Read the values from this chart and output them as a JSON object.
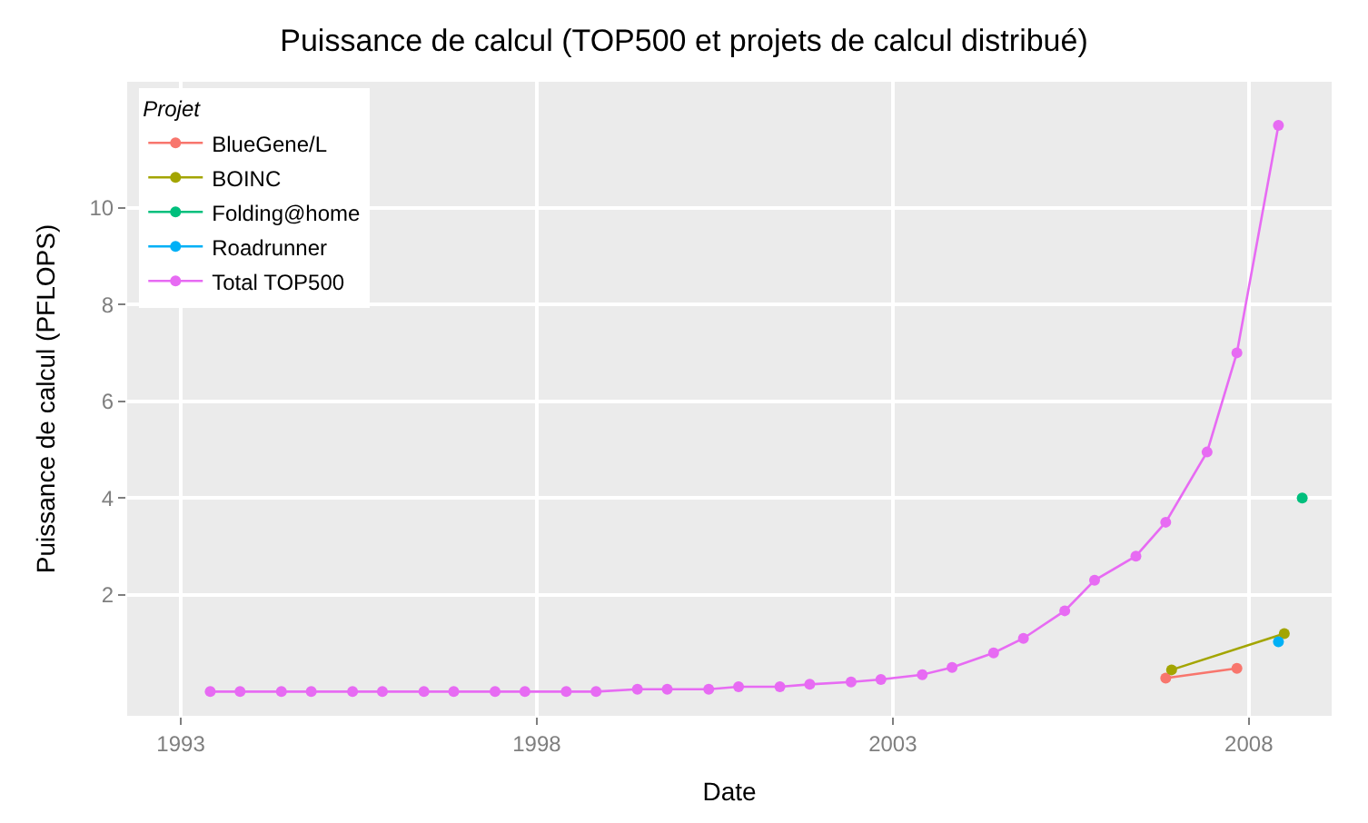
{
  "chart_data": {
    "type": "line",
    "title": "Puissance de calcul (TOP500 et projets de calcul distribué)",
    "xlabel": "Date",
    "ylabel": "Puissance de calcul (PFLOPS)",
    "legend_title": "Projet",
    "legend": "top left",
    "grid": true,
    "marker": "circle",
    "line_style": "solid",
    "xlim": [
      "1992-04",
      "2009-03"
    ],
    "xticks": [
      {
        "value": "1993-01",
        "label": "1993"
      },
      {
        "value": "1998-01",
        "label": "1998"
      },
      {
        "value": "2003-01",
        "label": "2003"
      },
      {
        "value": "2008-01",
        "label": "2008"
      }
    ],
    "ylim": [
      -0.5,
      12.6
    ],
    "yticks": [
      2,
      4,
      6,
      8,
      10
    ],
    "series": [
      {
        "name": "BlueGene/L",
        "color": "#f8766d",
        "x": [
          "2006-11",
          "2007-11"
        ],
        "values": [
          0.28,
          0.48
        ]
      },
      {
        "name": "BOINC",
        "color": "#a3a500",
        "x": [
          "2006-12",
          "2008-07"
        ],
        "values": [
          0.45,
          1.2
        ]
      },
      {
        "name": "Folding@home",
        "color": "#00bf7d",
        "x": [
          "2008-10"
        ],
        "values": [
          4.0
        ]
      },
      {
        "name": "Roadrunner",
        "color": "#00b0f6",
        "x": [
          "2008-06"
        ],
        "values": [
          1.03
        ]
      },
      {
        "name": "Total TOP500",
        "color": "#e76bf3",
        "x": [
          "1993-06",
          "1993-11",
          "1994-06",
          "1994-11",
          "1995-06",
          "1995-11",
          "1996-06",
          "1996-11",
          "1997-06",
          "1997-11",
          "1998-06",
          "1998-11",
          "1999-06",
          "1999-11",
          "2000-06",
          "2000-11",
          "2001-06",
          "2001-11",
          "2002-06",
          "2002-11",
          "2003-06",
          "2003-11",
          "2004-06",
          "2004-11",
          "2005-06",
          "2005-11",
          "2006-06",
          "2006-11",
          "2007-06",
          "2007-11",
          "2008-06"
        ],
        "values": [
          0,
          0,
          0,
          0,
          0,
          0,
          0,
          0,
          0,
          0,
          0,
          0,
          0.05,
          0.05,
          0.05,
          0.1,
          0.1,
          0.15,
          0.2,
          0.25,
          0.35,
          0.5,
          0.8,
          1.1,
          1.67,
          2.3,
          2.8,
          3.5,
          4.95,
          7.0,
          11.7
        ]
      }
    ]
  }
}
